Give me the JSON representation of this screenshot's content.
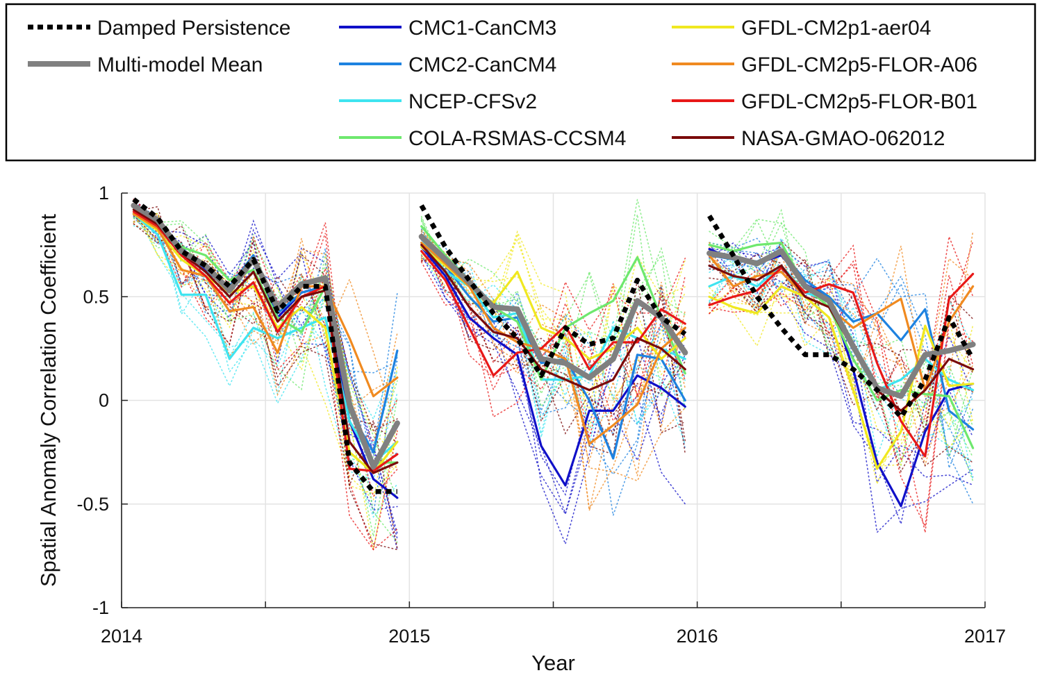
{
  "chart_data": {
    "type": "line",
    "xlabel": "Year",
    "ylabel": "Spatial Anomaly Correlation Coefficient",
    "ylim": [
      -1,
      1
    ],
    "xlim": [
      2014,
      2017
    ],
    "x_ticks": [
      "2014",
      "2015",
      "2016",
      "2017"
    ],
    "y_ticks": [
      "1",
      "0.5",
      "0",
      "-0.5",
      "-1"
    ],
    "grid": true,
    "legend_position": "top",
    "colors": {
      "Damped Persistence": "#000000",
      "Multi-model Mean": "#808080",
      "CMC1-CanCM3": "#1010c8",
      "CMC2-CanCM4": "#1e82e0",
      "NCEP-CFSv2": "#3fe4f0",
      "COLA-RSMAS-CCSM4": "#6ee86e",
      "GFDL-CM2p1-aer04": "#f0e820",
      "GFDL-CM2p5-FLOR-A06": "#f08a20",
      "GFDL-CM2p5-FLOR-B01": "#e81818",
      "NASA-GMAO-062012": "#7a0a0a"
    },
    "legend": [
      "Damped Persistence",
      "Multi-model Mean",
      "CMC1-CanCM3",
      "CMC2-CanCM4",
      "NCEP-CFSv2",
      "COLA-RSMAS-CCSM4",
      "GFDL-CM2p1-aer04",
      "GFDL-CM2p5-FLOR-A06",
      "GFDL-CM2p5-FLOR-B01",
      "NASA-GMAO-062012"
    ],
    "segments": [
      {
        "x": [
          2014.042,
          2014.125,
          2014.208,
          2014.292,
          2014.375,
          2014.458,
          2014.542,
          2014.625,
          2014.708,
          2014.792,
          2014.875,
          2014.958
        ],
        "series": [
          {
            "name": "Damped Persistence",
            "values": [
              0.97,
              0.88,
              0.72,
              0.65,
              0.55,
              0.68,
              0.43,
              0.55,
              0.55,
              -0.3,
              -0.44,
              -0.44
            ]
          },
          {
            "name": "Multi-model Mean",
            "values": [
              0.94,
              0.87,
              0.72,
              0.65,
              0.53,
              0.68,
              0.45,
              0.56,
              0.59,
              -0.02,
              -0.32,
              -0.11
            ]
          },
          {
            "name": "CMC1-CanCM3",
            "values": [
              0.93,
              0.86,
              0.7,
              0.63,
              0.55,
              0.7,
              0.4,
              0.52,
              0.55,
              -0.1,
              -0.38,
              -0.47
            ]
          },
          {
            "name": "CMC2-CanCM4",
            "values": [
              0.93,
              0.86,
              0.72,
              0.62,
              0.55,
              0.7,
              0.42,
              0.52,
              0.55,
              -0.05,
              -0.25,
              0.24
            ]
          },
          {
            "name": "NCEP-CFSv2",
            "values": [
              0.9,
              0.8,
              0.51,
              0.51,
              0.2,
              0.35,
              0.3,
              0.35,
              0.4,
              -0.1,
              -0.3,
              -0.2
            ]
          },
          {
            "name": "COLA-RSMAS-CCSM4",
            "values": [
              0.93,
              0.86,
              0.74,
              0.7,
              0.58,
              0.63,
              0.4,
              0.33,
              0.55,
              -0.05,
              -0.3,
              -0.3
            ]
          },
          {
            "name": "GFDL-CM2p1-aer04",
            "values": [
              0.9,
              0.82,
              0.68,
              0.6,
              0.52,
              0.55,
              0.35,
              0.45,
              0.35,
              -0.25,
              -0.35,
              -0.2
            ]
          },
          {
            "name": "GFDL-CM2p5-FLOR-A06",
            "values": [
              0.9,
              0.83,
              0.63,
              0.6,
              0.43,
              0.45,
              0.23,
              0.55,
              0.55,
              0.3,
              0.02,
              0.11
            ]
          },
          {
            "name": "GFDL-CM2p5-FLOR-B01",
            "values": [
              0.91,
              0.84,
              0.7,
              0.6,
              0.47,
              0.57,
              0.33,
              0.5,
              0.55,
              -0.33,
              -0.34,
              -0.26
            ]
          },
          {
            "name": "NASA-GMAO-062012",
            "values": [
              0.92,
              0.85,
              0.71,
              0.62,
              0.5,
              0.62,
              0.38,
              0.5,
              0.53,
              -0.2,
              -0.35,
              -0.3
            ]
          }
        ]
      },
      {
        "x": [
          2015.042,
          2015.125,
          2015.208,
          2015.292,
          2015.375,
          2015.458,
          2015.542,
          2015.625,
          2015.708,
          2015.792,
          2015.875,
          2015.958
        ],
        "series": [
          {
            "name": "Damped Persistence",
            "values": [
              0.94,
              0.74,
              0.58,
              0.42,
              0.3,
              0.12,
              0.35,
              0.27,
              0.3,
              0.58,
              0.4,
              0.32
            ]
          },
          {
            "name": "Multi-model Mean",
            "values": [
              0.79,
              0.68,
              0.57,
              0.45,
              0.44,
              0.2,
              0.18,
              0.11,
              0.2,
              0.48,
              0.4,
              0.23
            ]
          },
          {
            "name": "CMC1-CanCM3",
            "values": [
              0.74,
              0.6,
              0.4,
              0.3,
              0.22,
              -0.22,
              -0.41,
              -0.05,
              -0.05,
              0.12,
              0.06,
              -0.03
            ]
          },
          {
            "name": "CMC2-CanCM4",
            "values": [
              0.76,
              0.65,
              0.5,
              0.38,
              0.4,
              0.18,
              0.2,
              0.0,
              -0.28,
              0.22,
              0.2,
              0.0
            ]
          },
          {
            "name": "NCEP-CFSv2",
            "values": [
              0.78,
              0.62,
              0.55,
              0.4,
              0.42,
              0.1,
              0.1,
              0.12,
              0.35,
              0.3,
              0.25,
              0.2
            ]
          },
          {
            "name": "COLA-RSMAS-CCSM4",
            "values": [
              0.84,
              0.7,
              0.58,
              0.45,
              0.38,
              0.1,
              0.35,
              0.42,
              0.48,
              0.69,
              0.4,
              0.13
            ]
          },
          {
            "name": "GFDL-CM2p1-aer04",
            "values": [
              0.74,
              0.65,
              0.55,
              0.47,
              0.62,
              0.35,
              0.3,
              0.2,
              0.25,
              0.35,
              0.2,
              0.3
            ]
          },
          {
            "name": "GFDL-CM2p5-FLOR-A06",
            "values": [
              0.76,
              0.66,
              0.55,
              0.35,
              0.28,
              0.25,
              0.2,
              -0.21,
              -0.12,
              -0.02,
              0.25,
              0.35
            ]
          },
          {
            "name": "GFDL-CM2p5-FLOR-B01",
            "values": [
              0.72,
              0.58,
              0.35,
              0.12,
              0.23,
              0.25,
              0.36,
              0.15,
              0.28,
              0.28,
              0.44,
              0.37
            ]
          },
          {
            "name": "NASA-GMAO-062012",
            "values": [
              0.75,
              0.62,
              0.45,
              0.33,
              0.3,
              0.15,
              0.1,
              0.05,
              0.1,
              0.3,
              0.25,
              0.15
            ]
          }
        ]
      },
      {
        "x": [
          2016.042,
          2016.125,
          2016.208,
          2016.292,
          2016.375,
          2016.458,
          2016.542,
          2016.625,
          2016.708,
          2016.792,
          2016.875,
          2016.958
        ],
        "series": [
          {
            "name": "Damped Persistence",
            "values": [
              0.89,
              0.7,
              0.5,
              0.35,
              0.22,
              0.22,
              0.15,
              0.05,
              -0.08,
              0.1,
              0.4,
              0.2
            ]
          },
          {
            "name": "Multi-model Mean",
            "values": [
              0.71,
              0.69,
              0.66,
              0.72,
              0.55,
              0.48,
              0.26,
              0.06,
              0.02,
              0.22,
              0.24,
              0.27
            ]
          },
          {
            "name": "CMC1-CanCM3",
            "values": [
              0.73,
              0.68,
              0.66,
              0.7,
              0.56,
              0.5,
              0.15,
              -0.3,
              -0.51,
              -0.15,
              0.05,
              0.08
            ]
          },
          {
            "name": "CMC2-CanCM4",
            "values": [
              0.7,
              0.68,
              0.67,
              0.72,
              0.58,
              0.5,
              0.38,
              0.42,
              0.29,
              0.44,
              -0.05,
              -0.14
            ]
          },
          {
            "name": "NCEP-CFSv2",
            "values": [
              0.55,
              0.6,
              0.55,
              0.65,
              0.52,
              0.48,
              0.25,
              0.05,
              0.1,
              0.2,
              0.1,
              0.05
            ]
          },
          {
            "name": "COLA-RSMAS-CCSM4",
            "values": [
              0.75,
              0.72,
              0.75,
              0.76,
              0.55,
              0.45,
              0.2,
              0.0,
              0.05,
              0.03,
              0.02,
              -0.23
            ]
          },
          {
            "name": "GFDL-CM2p1-aer04",
            "values": [
              0.5,
              0.45,
              0.42,
              0.55,
              0.5,
              0.4,
              0.05,
              -0.33,
              -0.15,
              0.36,
              0.07,
              0.08
            ]
          },
          {
            "name": "GFDL-CM2p5-FLOR-A06",
            "values": [
              0.7,
              0.55,
              0.6,
              0.62,
              0.5,
              0.45,
              0.35,
              0.42,
              0.49,
              0.05,
              0.38,
              0.55
            ]
          },
          {
            "name": "GFDL-CM2p5-FLOR-B01",
            "values": [
              0.46,
              0.5,
              0.53,
              0.64,
              0.52,
              0.56,
              0.52,
              0.18,
              -0.1,
              -0.27,
              0.49,
              0.61
            ]
          },
          {
            "name": "NASA-GMAO-062012",
            "values": [
              0.65,
              0.6,
              0.58,
              0.65,
              0.5,
              0.45,
              0.25,
              0.05,
              -0.05,
              0.05,
              0.2,
              0.15
            ]
          }
        ]
      }
    ],
    "ensemble_members": "thin dotted lines, one per ensemble member of each model (values not individually labeled)"
  }
}
